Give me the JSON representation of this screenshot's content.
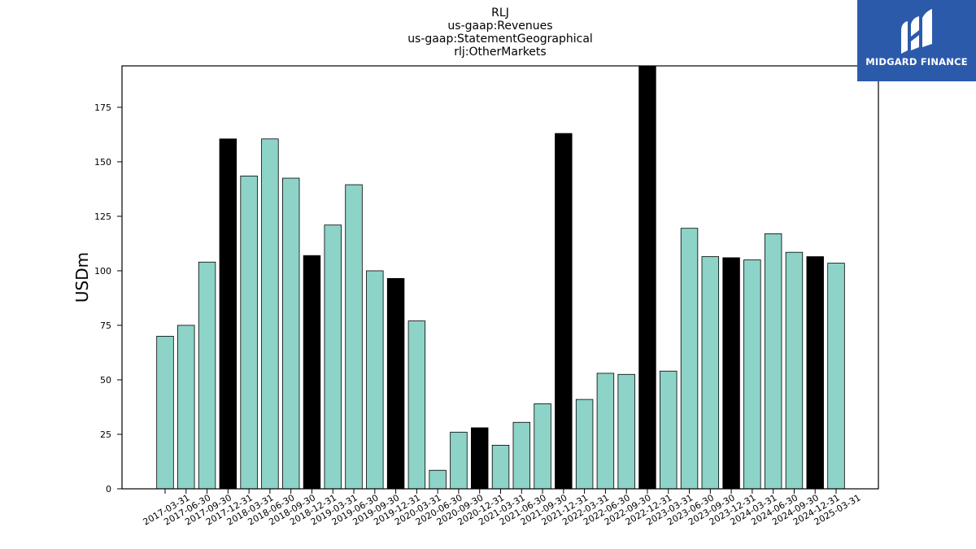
{
  "chart_data": {
    "type": "bar",
    "title_lines": [
      "RLJ",
      "us-gaap:Revenues",
      "us-gaap:StatementGeographical",
      "rlj:OtherMarkets"
    ],
    "xlabel": "",
    "ylabel": "USDm",
    "ylim": [
      0,
      194
    ],
    "yticks": [
      0,
      25,
      50,
      75,
      100,
      125,
      150,
      175
    ],
    "grid": false,
    "colors": {
      "quarter": "#8dd3c7",
      "year_end": "#000000",
      "edge": "#000000"
    },
    "categories": [
      "2017-03-31",
      "2017-06-30",
      "2017-09-30",
      "2017-12-31",
      "2018-03-31",
      "2018-06-30",
      "2018-09-30",
      "2018-12-31",
      "2019-03-31",
      "2019-06-30",
      "2019-09-30",
      "2019-12-31",
      "2020-03-31",
      "2020-06-30",
      "2020-09-30",
      "2020-12-31",
      "2021-03-31",
      "2021-06-30",
      "2021-09-30",
      "2021-12-31",
      "2022-03-31",
      "2022-06-30",
      "2022-09-30",
      "2022-12-31",
      "2023-03-31",
      "2023-06-30",
      "2023-09-30",
      "2023-12-31",
      "2024-03-31",
      "2024-06-30",
      "2024-09-30",
      "2024-12-31",
      "2025-03-31"
    ],
    "values": [
      70,
      75,
      104,
      160.5,
      143.5,
      160.5,
      142.5,
      107,
      121,
      139.5,
      100,
      96.5,
      77,
      8.5,
      26,
      28,
      20,
      30.5,
      39,
      163,
      41,
      53,
      52.5,
      194,
      54,
      119.5,
      106.5,
      106,
      105,
      117,
      108.5,
      106.5,
      103.5
    ],
    "highlight": [
      false,
      false,
      false,
      true,
      false,
      false,
      false,
      true,
      false,
      false,
      false,
      true,
      false,
      false,
      false,
      true,
      false,
      false,
      false,
      true,
      false,
      false,
      false,
      true,
      false,
      false,
      false,
      true,
      false,
      false,
      false,
      true,
      false
    ]
  },
  "logo": {
    "text": "MIDGARD FINANCE",
    "icon": "midgard-logo-icon",
    "background": "#2c5aab"
  }
}
